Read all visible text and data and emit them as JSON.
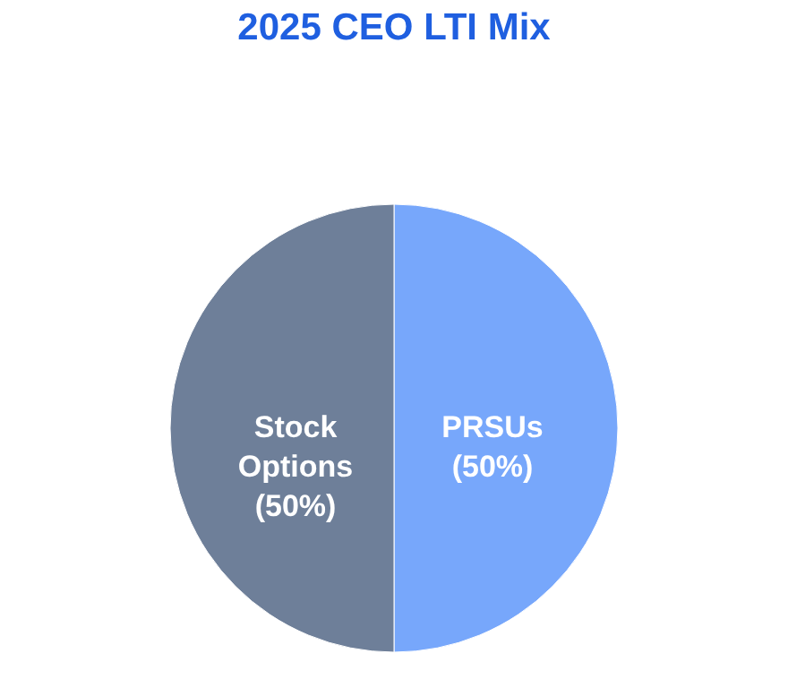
{
  "chart_data": {
    "type": "pie",
    "title": "2025 CEO LTI Mix",
    "categories": [
      "PRSUs",
      "Stock Options"
    ],
    "values": [
      50,
      50
    ],
    "colors": [
      "#77a7fb",
      "#6e7f99"
    ],
    "value_labels": [
      "(50%)",
      "(50%)"
    ],
    "legend": false
  }
}
